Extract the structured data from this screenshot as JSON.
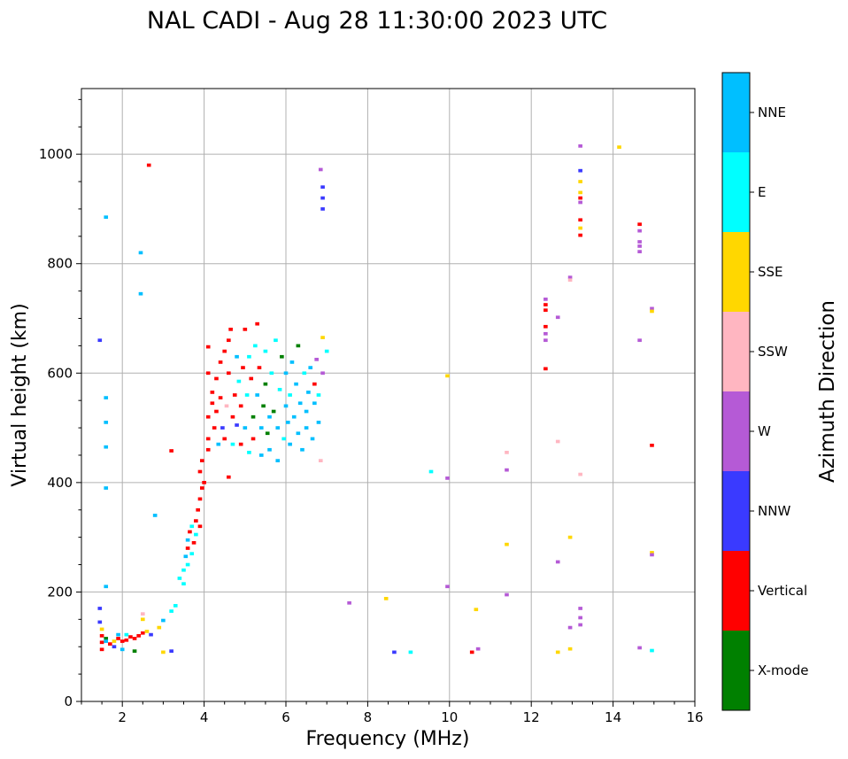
{
  "chart_data": {
    "type": "scatter",
    "title": "NAL CADI - Aug 28 11:30:00 2023 UTC",
    "xlabel": "Frequency (MHz)",
    "ylabel": "Virtual height (km)",
    "xlim": [
      1,
      16
    ],
    "ylim": [
      0,
      1120
    ],
    "xticks": [
      2,
      4,
      6,
      8,
      10,
      12,
      14,
      16
    ],
    "yticks": [
      0,
      200,
      400,
      600,
      800,
      1000
    ],
    "grid": true,
    "colorbar": {
      "title": "Azimuth Direction",
      "categories": [
        {
          "name": "X-mode",
          "color": "#008000"
        },
        {
          "name": "Vertical",
          "color": "#ff0000"
        },
        {
          "name": "NNW",
          "color": "#3a3aff"
        },
        {
          "name": "W",
          "color": "#b55ad6"
        },
        {
          "name": "SSW",
          "color": "#ffb6c1"
        },
        {
          "name": "SSE",
          "color": "#ffd700"
        },
        {
          "name": "E",
          "color": "#00ffff"
        },
        {
          "name": "NNE",
          "color": "#00bfff"
        }
      ]
    },
    "cell_size": {
      "df": 0.1,
      "dh": 6
    },
    "points": [
      {
        "f": 1.45,
        "h": 660,
        "c": "NNW"
      },
      {
        "f": 1.6,
        "h": 885,
        "c": "NNE"
      },
      {
        "f": 1.6,
        "h": 555,
        "c": "NNE"
      },
      {
        "f": 1.6,
        "h": 510,
        "c": "NNE"
      },
      {
        "f": 1.6,
        "h": 465,
        "c": "NNE"
      },
      {
        "f": 1.6,
        "h": 390,
        "c": "NNE"
      },
      {
        "f": 1.6,
        "h": 210,
        "c": "NNE"
      },
      {
        "f": 1.45,
        "h": 170,
        "c": "NNW"
      },
      {
        "f": 1.45,
        "h": 145,
        "c": "NNW"
      },
      {
        "f": 1.5,
        "h": 132,
        "c": "SSE"
      },
      {
        "f": 1.5,
        "h": 120,
        "c": "Vertical"
      },
      {
        "f": 1.6,
        "h": 115,
        "c": "X-mode"
      },
      {
        "f": 1.5,
        "h": 108,
        "c": "Vertical"
      },
      {
        "f": 1.6,
        "h": 110,
        "c": "NNE"
      },
      {
        "f": 1.7,
        "h": 105,
        "c": "Vertical"
      },
      {
        "f": 1.8,
        "h": 110,
        "c": "SSE"
      },
      {
        "f": 1.9,
        "h": 115,
        "c": "Vertical"
      },
      {
        "f": 2.0,
        "h": 110,
        "c": "Vertical"
      },
      {
        "f": 2.1,
        "h": 112,
        "c": "Vertical"
      },
      {
        "f": 2.2,
        "h": 118,
        "c": "Vertical"
      },
      {
        "f": 2.3,
        "h": 115,
        "c": "Vertical"
      },
      {
        "f": 2.4,
        "h": 120,
        "c": "Vertical"
      },
      {
        "f": 1.5,
        "h": 95,
        "c": "Vertical"
      },
      {
        "f": 1.8,
        "h": 100,
        "c": "NNW"
      },
      {
        "f": 2.0,
        "h": 95,
        "c": "NNE"
      },
      {
        "f": 2.3,
        "h": 92,
        "c": "X-mode"
      },
      {
        "f": 1.9,
        "h": 122,
        "c": "NNE"
      },
      {
        "f": 2.1,
        "h": 122,
        "c": "E"
      },
      {
        "f": 2.5,
        "h": 125,
        "c": "Vertical"
      },
      {
        "f": 2.6,
        "h": 128,
        "c": "SSE"
      },
      {
        "f": 2.7,
        "h": 122,
        "c": "NNW"
      },
      {
        "f": 2.9,
        "h": 135,
        "c": "SSE"
      },
      {
        "f": 3.0,
        "h": 148,
        "c": "NNE"
      },
      {
        "f": 3.2,
        "h": 165,
        "c": "E"
      },
      {
        "f": 2.5,
        "h": 160,
        "c": "SSW"
      },
      {
        "f": 2.5,
        "h": 150,
        "c": "SSE"
      },
      {
        "f": 3.0,
        "h": 90,
        "c": "SSE"
      },
      {
        "f": 3.2,
        "h": 92,
        "c": "NNW"
      },
      {
        "f": 2.8,
        "h": 340,
        "c": "NNE"
      },
      {
        "f": 2.45,
        "h": 820,
        "c": "NNE"
      },
      {
        "f": 2.45,
        "h": 745,
        "c": "NNE"
      },
      {
        "f": 2.65,
        "h": 980,
        "c": "Vertical"
      },
      {
        "f": 3.3,
        "h": 175,
        "c": "E"
      },
      {
        "f": 3.4,
        "h": 225,
        "c": "E"
      },
      {
        "f": 3.5,
        "h": 215,
        "c": "E"
      },
      {
        "f": 3.5,
        "h": 240,
        "c": "E"
      },
      {
        "f": 3.55,
        "h": 265,
        "c": "NNE"
      },
      {
        "f": 3.6,
        "h": 250,
        "c": "E"
      },
      {
        "f": 3.6,
        "h": 280,
        "c": "Vertical"
      },
      {
        "f": 3.6,
        "h": 295,
        "c": "NNE"
      },
      {
        "f": 3.65,
        "h": 310,
        "c": "Vertical"
      },
      {
        "f": 3.7,
        "h": 270,
        "c": "E"
      },
      {
        "f": 3.7,
        "h": 320,
        "c": "E"
      },
      {
        "f": 3.75,
        "h": 290,
        "c": "Vertical"
      },
      {
        "f": 3.8,
        "h": 330,
        "c": "Vertical"
      },
      {
        "f": 3.8,
        "h": 305,
        "c": "E"
      },
      {
        "f": 3.85,
        "h": 350,
        "c": "Vertical"
      },
      {
        "f": 3.9,
        "h": 370,
        "c": "Vertical"
      },
      {
        "f": 3.9,
        "h": 320,
        "c": "Vertical"
      },
      {
        "f": 3.95,
        "h": 390,
        "c": "Vertical"
      },
      {
        "f": 4.0,
        "h": 400,
        "c": "Vertical"
      },
      {
        "f": 3.9,
        "h": 420,
        "c": "Vertical"
      },
      {
        "f": 3.95,
        "h": 440,
        "c": "Vertical"
      },
      {
        "f": 3.2,
        "h": 458,
        "c": "Vertical"
      },
      {
        "f": 4.1,
        "h": 460,
        "c": "Vertical"
      },
      {
        "f": 4.1,
        "h": 480,
        "c": "Vertical"
      },
      {
        "f": 4.1,
        "h": 520,
        "c": "Vertical"
      },
      {
        "f": 4.2,
        "h": 545,
        "c": "Vertical"
      },
      {
        "f": 4.2,
        "h": 565,
        "c": "Vertical"
      },
      {
        "f": 4.1,
        "h": 600,
        "c": "Vertical"
      },
      {
        "f": 4.1,
        "h": 648,
        "c": "Vertical"
      },
      {
        "f": 4.25,
        "h": 500,
        "c": "Vertical"
      },
      {
        "f": 4.3,
        "h": 530,
        "c": "Vertical"
      },
      {
        "f": 4.3,
        "h": 590,
        "c": "Vertical"
      },
      {
        "f": 4.35,
        "h": 470,
        "c": "NNE"
      },
      {
        "f": 4.4,
        "h": 620,
        "c": "Vertical"
      },
      {
        "f": 4.4,
        "h": 555,
        "c": "Vertical"
      },
      {
        "f": 4.45,
        "h": 500,
        "c": "NNW"
      },
      {
        "f": 4.5,
        "h": 480,
        "c": "Vertical"
      },
      {
        "f": 4.5,
        "h": 640,
        "c": "Vertical"
      },
      {
        "f": 4.55,
        "h": 540,
        "c": "SSW"
      },
      {
        "f": 4.6,
        "h": 660,
        "c": "Vertical"
      },
      {
        "f": 4.6,
        "h": 600,
        "c": "Vertical"
      },
      {
        "f": 4.6,
        "h": 410,
        "c": "Vertical"
      },
      {
        "f": 4.65,
        "h": 680,
        "c": "Vertical"
      },
      {
        "f": 4.7,
        "h": 520,
        "c": "Vertical"
      },
      {
        "f": 4.7,
        "h": 470,
        "c": "E"
      },
      {
        "f": 4.75,
        "h": 560,
        "c": "Vertical"
      },
      {
        "f": 4.8,
        "h": 505,
        "c": "NNW"
      },
      {
        "f": 4.8,
        "h": 630,
        "c": "NNE"
      },
      {
        "f": 4.85,
        "h": 585,
        "c": "E"
      },
      {
        "f": 4.9,
        "h": 540,
        "c": "Vertical"
      },
      {
        "f": 4.9,
        "h": 470,
        "c": "Vertical"
      },
      {
        "f": 4.95,
        "h": 610,
        "c": "Vertical"
      },
      {
        "f": 5.0,
        "h": 680,
        "c": "Vertical"
      },
      {
        "f": 5.0,
        "h": 500,
        "c": "NNE"
      },
      {
        "f": 5.05,
        "h": 560,
        "c": "E"
      },
      {
        "f": 5.1,
        "h": 630,
        "c": "E"
      },
      {
        "f": 5.1,
        "h": 455,
        "c": "E"
      },
      {
        "f": 5.15,
        "h": 590,
        "c": "Vertical"
      },
      {
        "f": 5.2,
        "h": 520,
        "c": "X-mode"
      },
      {
        "f": 5.2,
        "h": 480,
        "c": "Vertical"
      },
      {
        "f": 5.25,
        "h": 650,
        "c": "E"
      },
      {
        "f": 5.3,
        "h": 690,
        "c": "Vertical"
      },
      {
        "f": 5.3,
        "h": 560,
        "c": "NNE"
      },
      {
        "f": 5.35,
        "h": 610,
        "c": "Vertical"
      },
      {
        "f": 5.4,
        "h": 500,
        "c": "NNE"
      },
      {
        "f": 5.4,
        "h": 450,
        "c": "NNE"
      },
      {
        "f": 5.45,
        "h": 540,
        "c": "X-mode"
      },
      {
        "f": 5.5,
        "h": 640,
        "c": "E"
      },
      {
        "f": 5.5,
        "h": 580,
        "c": "X-mode"
      },
      {
        "f": 5.55,
        "h": 490,
        "c": "X-mode"
      },
      {
        "f": 5.6,
        "h": 520,
        "c": "NNE"
      },
      {
        "f": 5.6,
        "h": 460,
        "c": "NNE"
      },
      {
        "f": 5.65,
        "h": 600,
        "c": "E"
      },
      {
        "f": 5.7,
        "h": 530,
        "c": "X-mode"
      },
      {
        "f": 5.75,
        "h": 660,
        "c": "E"
      },
      {
        "f": 5.8,
        "h": 500,
        "c": "NNE"
      },
      {
        "f": 5.8,
        "h": 440,
        "c": "NNE"
      },
      {
        "f": 5.85,
        "h": 570,
        "c": "E"
      },
      {
        "f": 5.9,
        "h": 630,
        "c": "X-mode"
      },
      {
        "f": 5.95,
        "h": 480,
        "c": "E"
      },
      {
        "f": 6.0,
        "h": 540,
        "c": "NNE"
      },
      {
        "f": 6.0,
        "h": 600,
        "c": "NNE"
      },
      {
        "f": 6.05,
        "h": 510,
        "c": "NNE"
      },
      {
        "f": 6.1,
        "h": 560,
        "c": "E"
      },
      {
        "f": 6.1,
        "h": 470,
        "c": "NNE"
      },
      {
        "f": 6.15,
        "h": 620,
        "c": "NNE"
      },
      {
        "f": 6.2,
        "h": 520,
        "c": "NNE"
      },
      {
        "f": 6.25,
        "h": 580,
        "c": "NNE"
      },
      {
        "f": 6.3,
        "h": 490,
        "c": "NNE"
      },
      {
        "f": 6.3,
        "h": 650,
        "c": "X-mode"
      },
      {
        "f": 6.35,
        "h": 545,
        "c": "NNE"
      },
      {
        "f": 6.4,
        "h": 460,
        "c": "NNE"
      },
      {
        "f": 6.45,
        "h": 600,
        "c": "E"
      },
      {
        "f": 6.5,
        "h": 530,
        "c": "NNE"
      },
      {
        "f": 6.5,
        "h": 500,
        "c": "NNE"
      },
      {
        "f": 6.55,
        "h": 565,
        "c": "NNE"
      },
      {
        "f": 6.6,
        "h": 610,
        "c": "NNE"
      },
      {
        "f": 6.65,
        "h": 480,
        "c": "NNE"
      },
      {
        "f": 6.7,
        "h": 545,
        "c": "NNE"
      },
      {
        "f": 6.7,
        "h": 580,
        "c": "Vertical"
      },
      {
        "f": 6.75,
        "h": 625,
        "c": "W"
      },
      {
        "f": 6.8,
        "h": 510,
        "c": "NNE"
      },
      {
        "f": 6.8,
        "h": 560,
        "c": "E"
      },
      {
        "f": 6.85,
        "h": 440,
        "c": "SSW"
      },
      {
        "f": 6.9,
        "h": 600,
        "c": "W"
      },
      {
        "f": 6.9,
        "h": 665,
        "c": "SSE"
      },
      {
        "f": 7.0,
        "h": 640,
        "c": "E"
      },
      {
        "f": 6.85,
        "h": 972,
        "c": "W"
      },
      {
        "f": 6.9,
        "h": 940,
        "c": "NNW"
      },
      {
        "f": 6.9,
        "h": 920,
        "c": "NNW"
      },
      {
        "f": 6.9,
        "h": 900,
        "c": "NNW"
      },
      {
        "f": 7.55,
        "h": 180,
        "c": "W"
      },
      {
        "f": 8.45,
        "h": 188,
        "c": "SSE"
      },
      {
        "f": 8.65,
        "h": 90,
        "c": "NNW"
      },
      {
        "f": 9.05,
        "h": 90,
        "c": "E"
      },
      {
        "f": 9.55,
        "h": 420,
        "c": "E"
      },
      {
        "f": 9.95,
        "h": 595,
        "c": "SSE"
      },
      {
        "f": 9.95,
        "h": 408,
        "c": "W"
      },
      {
        "f": 9.95,
        "h": 210,
        "c": "W"
      },
      {
        "f": 10.65,
        "h": 168,
        "c": "SSE"
      },
      {
        "f": 10.55,
        "h": 90,
        "c": "Vertical"
      },
      {
        "f": 10.7,
        "h": 96,
        "c": "W"
      },
      {
        "f": 11.4,
        "h": 455,
        "c": "SSW"
      },
      {
        "f": 11.4,
        "h": 423,
        "c": "W"
      },
      {
        "f": 11.4,
        "h": 287,
        "c": "SSE"
      },
      {
        "f": 11.4,
        "h": 195,
        "c": "W"
      },
      {
        "f": 12.35,
        "h": 735,
        "c": "W"
      },
      {
        "f": 12.35,
        "h": 725,
        "c": "Vertical"
      },
      {
        "f": 12.35,
        "h": 715,
        "c": "Vertical"
      },
      {
        "f": 12.35,
        "h": 685,
        "c": "Vertical"
      },
      {
        "f": 12.35,
        "h": 672,
        "c": "W"
      },
      {
        "f": 12.35,
        "h": 660,
        "c": "W"
      },
      {
        "f": 12.35,
        "h": 608,
        "c": "Vertical"
      },
      {
        "f": 12.65,
        "h": 702,
        "c": "W"
      },
      {
        "f": 12.65,
        "h": 475,
        "c": "SSW"
      },
      {
        "f": 12.65,
        "h": 255,
        "c": "W"
      },
      {
        "f": 12.65,
        "h": 90,
        "c": "SSE"
      },
      {
        "f": 12.95,
        "h": 775,
        "c": "W"
      },
      {
        "f": 12.95,
        "h": 770,
        "c": "SSW"
      },
      {
        "f": 12.95,
        "h": 300,
        "c": "SSE"
      },
      {
        "f": 12.95,
        "h": 135,
        "c": "W"
      },
      {
        "f": 12.95,
        "h": 96,
        "c": "SSE"
      },
      {
        "f": 13.2,
        "h": 1015,
        "c": "W"
      },
      {
        "f": 13.2,
        "h": 970,
        "c": "NNW"
      },
      {
        "f": 13.2,
        "h": 950,
        "c": "SSE"
      },
      {
        "f": 13.2,
        "h": 930,
        "c": "SSE"
      },
      {
        "f": 13.2,
        "h": 920,
        "c": "Vertical"
      },
      {
        "f": 13.2,
        "h": 912,
        "c": "W"
      },
      {
        "f": 13.2,
        "h": 880,
        "c": "Vertical"
      },
      {
        "f": 13.2,
        "h": 865,
        "c": "SSE"
      },
      {
        "f": 13.2,
        "h": 852,
        "c": "Vertical"
      },
      {
        "f": 13.2,
        "h": 415,
        "c": "SSW"
      },
      {
        "f": 13.2,
        "h": 170,
        "c": "W"
      },
      {
        "f": 13.2,
        "h": 153,
        "c": "W"
      },
      {
        "f": 13.2,
        "h": 140,
        "c": "W"
      },
      {
        "f": 14.15,
        "h": 1013,
        "c": "SSE"
      },
      {
        "f": 14.65,
        "h": 872,
        "c": "Vertical"
      },
      {
        "f": 14.65,
        "h": 860,
        "c": "W"
      },
      {
        "f": 14.65,
        "h": 840,
        "c": "W"
      },
      {
        "f": 14.65,
        "h": 832,
        "c": "W"
      },
      {
        "f": 14.65,
        "h": 822,
        "c": "W"
      },
      {
        "f": 14.65,
        "h": 660,
        "c": "W"
      },
      {
        "f": 14.65,
        "h": 98,
        "c": "W"
      },
      {
        "f": 14.95,
        "h": 718,
        "c": "W"
      },
      {
        "f": 14.95,
        "h": 713,
        "c": "SSE"
      },
      {
        "f": 14.95,
        "h": 468,
        "c": "Vertical"
      },
      {
        "f": 14.95,
        "h": 272,
        "c": "SSE"
      },
      {
        "f": 14.95,
        "h": 268,
        "c": "W"
      },
      {
        "f": 14.95,
        "h": 93,
        "c": "E"
      }
    ]
  }
}
